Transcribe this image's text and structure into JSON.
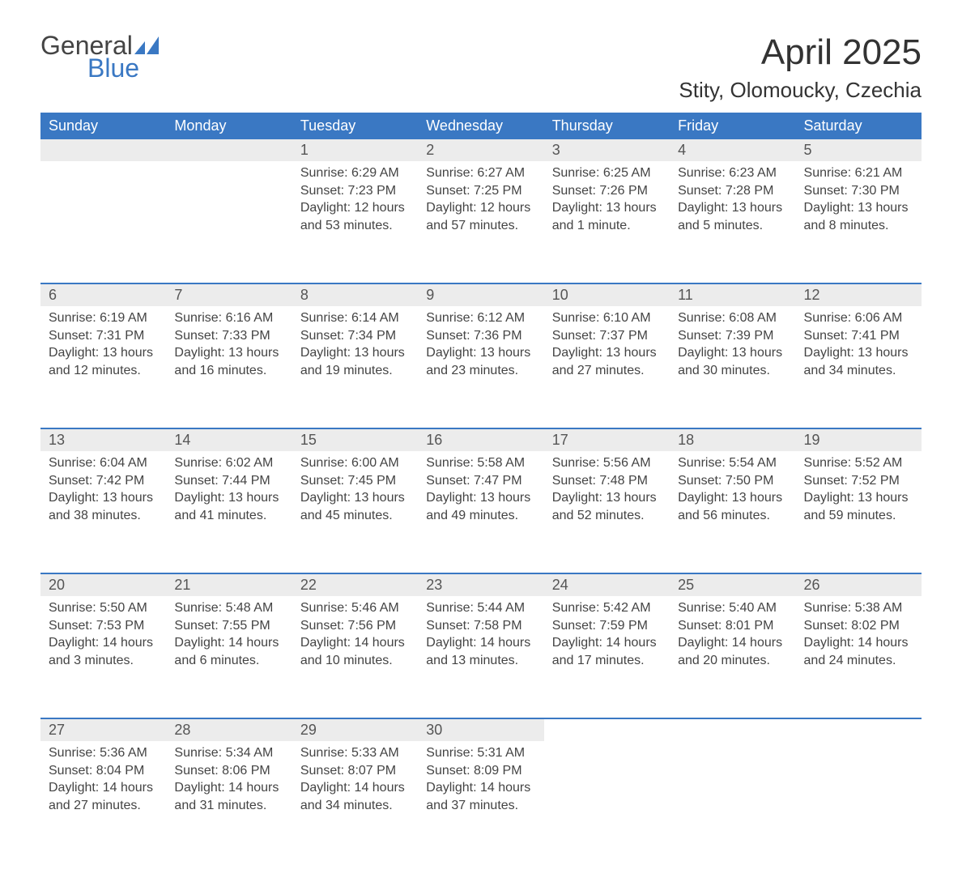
{
  "logo": {
    "line1": "General",
    "line2": "Blue"
  },
  "title": "April 2025",
  "subtitle": "Stity, Olomoucky, Czechia",
  "colors": {
    "header_bg": "#3a78c3",
    "header_fg": "#ffffff",
    "daynum_bg": "#ececec",
    "separator": "#3a78c3",
    "page_bg": "#ffffff",
    "text": "#444444"
  },
  "day_headers": [
    "Sunday",
    "Monday",
    "Tuesday",
    "Wednesday",
    "Thursday",
    "Friday",
    "Saturday"
  ],
  "weeks": [
    [
      null,
      null,
      {
        "n": "1",
        "sunrise": "Sunrise: 6:29 AM",
        "sunset": "Sunset: 7:23 PM",
        "daylight": "Daylight: 12 hours and 53 minutes."
      },
      {
        "n": "2",
        "sunrise": "Sunrise: 6:27 AM",
        "sunset": "Sunset: 7:25 PM",
        "daylight": "Daylight: 12 hours and 57 minutes."
      },
      {
        "n": "3",
        "sunrise": "Sunrise: 6:25 AM",
        "sunset": "Sunset: 7:26 PM",
        "daylight": "Daylight: 13 hours and 1 minute."
      },
      {
        "n": "4",
        "sunrise": "Sunrise: 6:23 AM",
        "sunset": "Sunset: 7:28 PM",
        "daylight": "Daylight: 13 hours and 5 minutes."
      },
      {
        "n": "5",
        "sunrise": "Sunrise: 6:21 AM",
        "sunset": "Sunset: 7:30 PM",
        "daylight": "Daylight: 13 hours and 8 minutes."
      }
    ],
    [
      {
        "n": "6",
        "sunrise": "Sunrise: 6:19 AM",
        "sunset": "Sunset: 7:31 PM",
        "daylight": "Daylight: 13 hours and 12 minutes."
      },
      {
        "n": "7",
        "sunrise": "Sunrise: 6:16 AM",
        "sunset": "Sunset: 7:33 PM",
        "daylight": "Daylight: 13 hours and 16 minutes."
      },
      {
        "n": "8",
        "sunrise": "Sunrise: 6:14 AM",
        "sunset": "Sunset: 7:34 PM",
        "daylight": "Daylight: 13 hours and 19 minutes."
      },
      {
        "n": "9",
        "sunrise": "Sunrise: 6:12 AM",
        "sunset": "Sunset: 7:36 PM",
        "daylight": "Daylight: 13 hours and 23 minutes."
      },
      {
        "n": "10",
        "sunrise": "Sunrise: 6:10 AM",
        "sunset": "Sunset: 7:37 PM",
        "daylight": "Daylight: 13 hours and 27 minutes."
      },
      {
        "n": "11",
        "sunrise": "Sunrise: 6:08 AM",
        "sunset": "Sunset: 7:39 PM",
        "daylight": "Daylight: 13 hours and 30 minutes."
      },
      {
        "n": "12",
        "sunrise": "Sunrise: 6:06 AM",
        "sunset": "Sunset: 7:41 PM",
        "daylight": "Daylight: 13 hours and 34 minutes."
      }
    ],
    [
      {
        "n": "13",
        "sunrise": "Sunrise: 6:04 AM",
        "sunset": "Sunset: 7:42 PM",
        "daylight": "Daylight: 13 hours and 38 minutes."
      },
      {
        "n": "14",
        "sunrise": "Sunrise: 6:02 AM",
        "sunset": "Sunset: 7:44 PM",
        "daylight": "Daylight: 13 hours and 41 minutes."
      },
      {
        "n": "15",
        "sunrise": "Sunrise: 6:00 AM",
        "sunset": "Sunset: 7:45 PM",
        "daylight": "Daylight: 13 hours and 45 minutes."
      },
      {
        "n": "16",
        "sunrise": "Sunrise: 5:58 AM",
        "sunset": "Sunset: 7:47 PM",
        "daylight": "Daylight: 13 hours and 49 minutes."
      },
      {
        "n": "17",
        "sunrise": "Sunrise: 5:56 AM",
        "sunset": "Sunset: 7:48 PM",
        "daylight": "Daylight: 13 hours and 52 minutes."
      },
      {
        "n": "18",
        "sunrise": "Sunrise: 5:54 AM",
        "sunset": "Sunset: 7:50 PM",
        "daylight": "Daylight: 13 hours and 56 minutes."
      },
      {
        "n": "19",
        "sunrise": "Sunrise: 5:52 AM",
        "sunset": "Sunset: 7:52 PM",
        "daylight": "Daylight: 13 hours and 59 minutes."
      }
    ],
    [
      {
        "n": "20",
        "sunrise": "Sunrise: 5:50 AM",
        "sunset": "Sunset: 7:53 PM",
        "daylight": "Daylight: 14 hours and 3 minutes."
      },
      {
        "n": "21",
        "sunrise": "Sunrise: 5:48 AM",
        "sunset": "Sunset: 7:55 PM",
        "daylight": "Daylight: 14 hours and 6 minutes."
      },
      {
        "n": "22",
        "sunrise": "Sunrise: 5:46 AM",
        "sunset": "Sunset: 7:56 PM",
        "daylight": "Daylight: 14 hours and 10 minutes."
      },
      {
        "n": "23",
        "sunrise": "Sunrise: 5:44 AM",
        "sunset": "Sunset: 7:58 PM",
        "daylight": "Daylight: 14 hours and 13 minutes."
      },
      {
        "n": "24",
        "sunrise": "Sunrise: 5:42 AM",
        "sunset": "Sunset: 7:59 PM",
        "daylight": "Daylight: 14 hours and 17 minutes."
      },
      {
        "n": "25",
        "sunrise": "Sunrise: 5:40 AM",
        "sunset": "Sunset: 8:01 PM",
        "daylight": "Daylight: 14 hours and 20 minutes."
      },
      {
        "n": "26",
        "sunrise": "Sunrise: 5:38 AM",
        "sunset": "Sunset: 8:02 PM",
        "daylight": "Daylight: 14 hours and 24 minutes."
      }
    ],
    [
      {
        "n": "27",
        "sunrise": "Sunrise: 5:36 AM",
        "sunset": "Sunset: 8:04 PM",
        "daylight": "Daylight: 14 hours and 27 minutes."
      },
      {
        "n": "28",
        "sunrise": "Sunrise: 5:34 AM",
        "sunset": "Sunset: 8:06 PM",
        "daylight": "Daylight: 14 hours and 31 minutes."
      },
      {
        "n": "29",
        "sunrise": "Sunrise: 5:33 AM",
        "sunset": "Sunset: 8:07 PM",
        "daylight": "Daylight: 14 hours and 34 minutes."
      },
      {
        "n": "30",
        "sunrise": "Sunrise: 5:31 AM",
        "sunset": "Sunset: 8:09 PM",
        "daylight": "Daylight: 14 hours and 37 minutes."
      },
      null,
      null,
      null
    ]
  ]
}
